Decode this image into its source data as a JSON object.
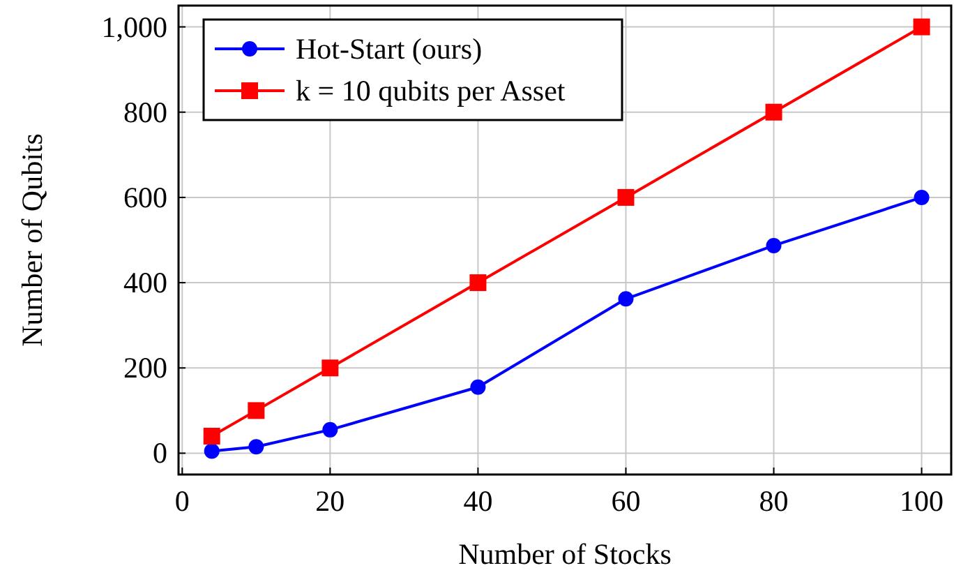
{
  "chart_data": {
    "type": "line",
    "xlabel": "Number of Stocks",
    "ylabel": "Number of Qubits",
    "x": [
      4,
      10,
      20,
      40,
      60,
      80,
      100
    ],
    "series": [
      {
        "name": "Hot-Start (ours)",
        "color": "#0000ff",
        "marker": "circle",
        "values": [
          5,
          15,
          55,
          155,
          362,
          487,
          600
        ]
      },
      {
        "name": "k = 10 qubits per Asset",
        "color": "#ff0000",
        "marker": "square",
        "values": [
          40,
          100,
          200,
          400,
          600,
          800,
          1000
        ]
      }
    ],
    "xlim": [
      -0.5,
      104
    ],
    "xticks": [
      0,
      20,
      40,
      60,
      80,
      100
    ],
    "ylim": [
      -50,
      1050
    ],
    "yticks": [
      0,
      200,
      400,
      600,
      800,
      {
        "value": 1000,
        "label": "1,000"
      }
    ],
    "grid": true,
    "legend": "top left",
    "line_style": "solid"
  }
}
